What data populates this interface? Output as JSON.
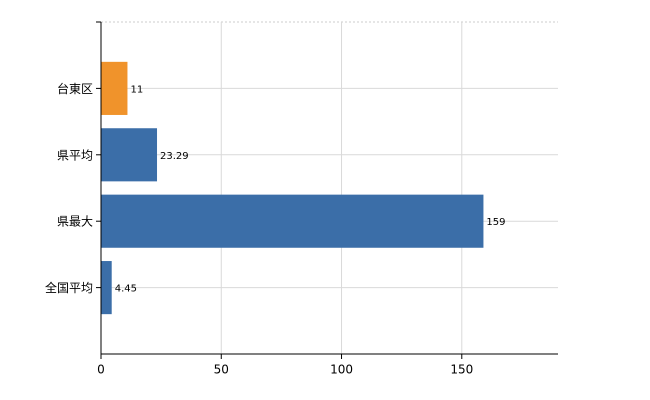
{
  "chart_data": {
    "type": "hbar",
    "categories": [
      "台東区",
      "県平均",
      "県最大",
      "全国平均"
    ],
    "values": [
      11,
      23.29,
      159,
      4.45
    ],
    "colors": [
      "#f0932b",
      "#3b6ea8",
      "#3b6ea8",
      "#3b6ea8"
    ],
    "xlim": [
      0,
      190
    ],
    "xticks": [
      0,
      50,
      100,
      150
    ],
    "grid": true
  }
}
